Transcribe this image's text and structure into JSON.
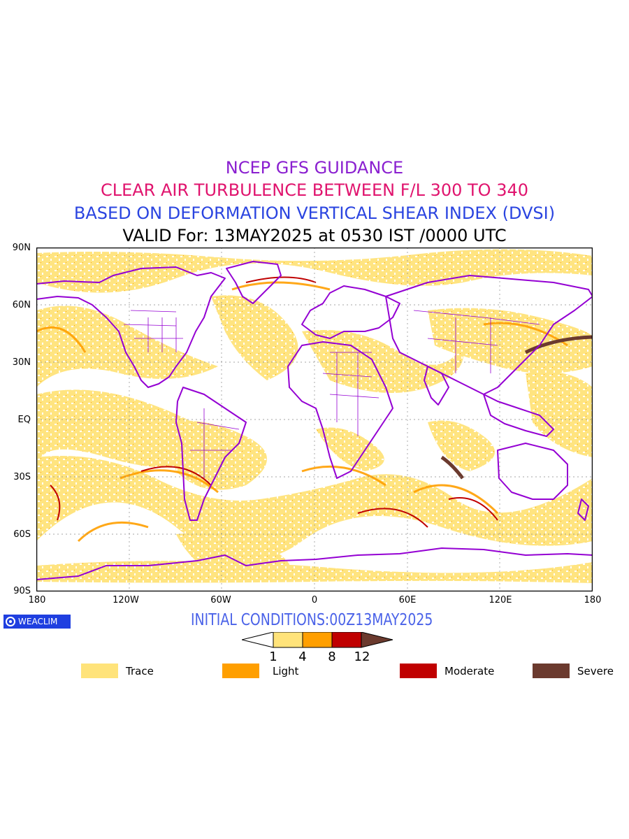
{
  "titles": {
    "line1": "NCEP GFS GUIDANCE",
    "line2": "CLEAR AIR TURBULENCE BETWEEN F/L 300 TO 340",
    "line3": "BASED ON DEFORMATION VERTICAL SHEAR INDEX (DVSI)",
    "line4": "VALID For: 13MAY2025 at 0530 IST /0000 UTC"
  },
  "axes": {
    "lat_labels": [
      "90N",
      "60N",
      "30N",
      "EQ",
      "30S",
      "60S",
      "90S"
    ],
    "lon_labels": [
      "180",
      "120W",
      "60W",
      "0",
      "60E",
      "120E",
      "180"
    ]
  },
  "logo": {
    "text": "WEACLIM",
    "icon": "weaclim-logo-icon"
  },
  "initial_conditions": "INITIAL CONDITIONS:00Z13MAY2025",
  "colorbar": {
    "ticks": [
      "1",
      "4",
      "8",
      "12"
    ],
    "colors": {
      "under": "#ffffff",
      "trace": "#ffe37a",
      "light": "#ff9f00",
      "moderate": "#c00000",
      "severe": "#6b3a2e"
    }
  },
  "legend": [
    {
      "label": "Trace",
      "color": "#ffe37a"
    },
    {
      "label": "Light",
      "color": "#ff9f00"
    },
    {
      "label": "Moderate",
      "color": "#c00000"
    },
    {
      "label": "Severe",
      "color": "#6b3a2e"
    }
  ],
  "map_colors": {
    "coastline": "#9400d3",
    "grid": "#888888"
  }
}
